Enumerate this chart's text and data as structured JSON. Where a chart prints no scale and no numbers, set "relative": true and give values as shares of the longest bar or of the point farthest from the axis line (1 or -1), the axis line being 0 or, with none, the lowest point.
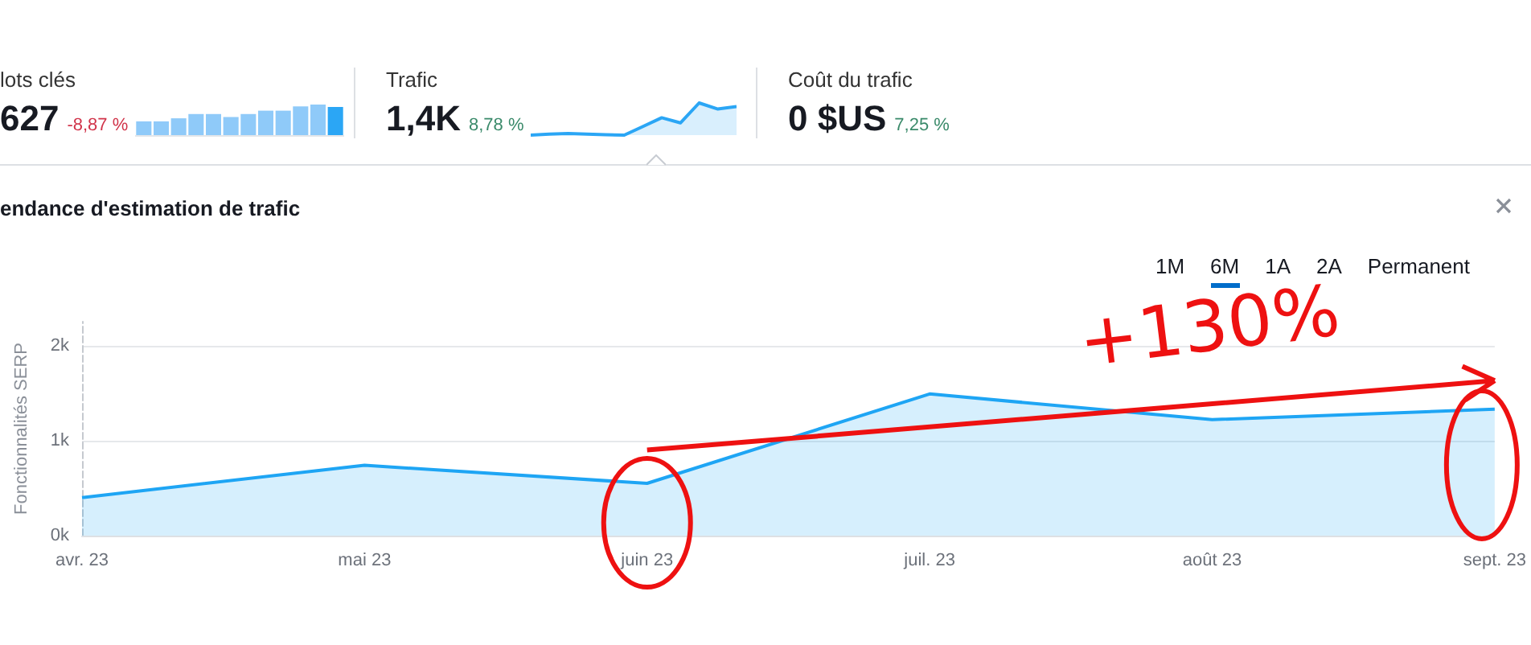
{
  "chart_data": [
    {
      "type": "bar",
      "relative": true,
      "title": "lots clés",
      "annotations": [
        "627",
        "-8,87 %"
      ],
      "categories": [
        null,
        null,
        null,
        null,
        null,
        null,
        null,
        null,
        null,
        null,
        null,
        null
      ],
      "values": [
        0.45,
        0.45,
        0.55,
        0.69,
        0.69,
        0.59,
        0.69,
        0.8,
        0.8,
        0.94,
        1,
        0.92
      ],
      "colors": [
        "#8fcaf9",
        "#8fcaf9",
        "#8fcaf9",
        "#8fcaf9",
        "#8fcaf9",
        "#8fcaf9",
        "#8fcaf9",
        "#8fcaf9",
        "#8fcaf9",
        "#8fcaf9",
        "#8fcaf9",
        "#2ba6f5"
      ]
    },
    {
      "type": "area",
      "relative": true,
      "title": "Trafic",
      "annotations": [
        "1,4K",
        "8,78 %"
      ],
      "categories": [
        null,
        null,
        null,
        null,
        null,
        null,
        null,
        null,
        null,
        null,
        null,
        null
      ],
      "series": [
        {
          "color": "#2ba6f5",
          "values": [
            0,
            0.03,
            0.05,
            0.03,
            0.01,
            0,
            0.27,
            0.54,
            0.38,
            1,
            0.81,
            0.89
          ]
        }
      ]
    },
    {
      "type": "other",
      "title": "Coût du trafic",
      "annotations": [
        "0 $US",
        "7,25 %"
      ]
    },
    {
      "type": "area",
      "title": "endance d'estimation de trafic",
      "ylabel": "Fonctionnalités SERP",
      "categories": [
        "avr. 23",
        "mai 23",
        "juin 23",
        "juil. 23",
        "août 23",
        "sept. 23"
      ],
      "series": [
        {
          "color": "#1ea5f4",
          "values": [
            400,
            740,
            550,
            1490,
            1220,
            1330
          ]
        }
      ],
      "ylim": [
        0,
        2250
      ],
      "yticks": [
        {
          "value": 0,
          "label": "0k"
        },
        {
          "value": 1000,
          "label": "1k"
        },
        {
          "value": 2000,
          "label": "2k"
        }
      ],
      "grid": "y",
      "annotations": [
        "+130%",
        "1M",
        "6M",
        "1A",
        "2A",
        "Permanent"
      ]
    }
  ]
}
